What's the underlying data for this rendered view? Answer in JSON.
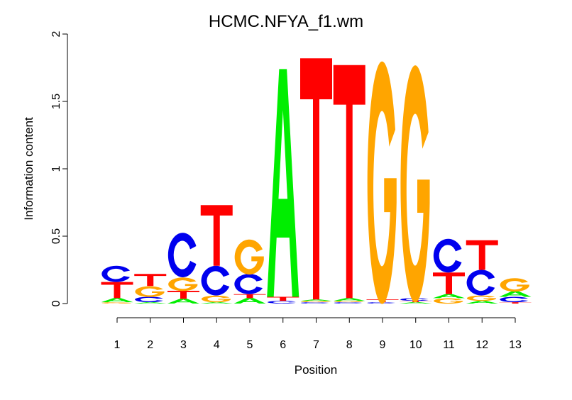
{
  "chart_data": {
    "type": "sequence-logo",
    "title": "HCMC.NFYA_f1.wm",
    "xlabel": "Position",
    "ylabel": "Information content",
    "ylim": [
      0,
      2
    ],
    "yticks": [
      "0",
      "0.5",
      "1",
      "1.5",
      "2"
    ],
    "categories": [
      "1",
      "2",
      "3",
      "4",
      "5",
      "6",
      "7",
      "8",
      "9",
      "10",
      "11",
      "12",
      "13"
    ],
    "colors": {
      "A": "#00ee00",
      "C": "#0000ee",
      "G": "#ffa500",
      "T": "#ff0000"
    },
    "positions": [
      [
        [
          "G",
          0.01
        ],
        [
          "A",
          0.03
        ],
        [
          "T",
          0.12
        ],
        [
          "C",
          0.12
        ]
      ],
      [
        [
          "A",
          0.01
        ],
        [
          "C",
          0.04
        ],
        [
          "G",
          0.08
        ],
        [
          "T",
          0.09
        ]
      ],
      [
        [
          "A",
          0.035
        ],
        [
          "T",
          0.06
        ],
        [
          "G",
          0.1
        ],
        [
          "C",
          0.33
        ]
      ],
      [
        [
          "A",
          0.01
        ],
        [
          "G",
          0.05
        ],
        [
          "C",
          0.22
        ],
        [
          "T",
          0.45
        ]
      ],
      [
        [
          "A",
          0.04
        ],
        [
          "T",
          0.03
        ],
        [
          "C",
          0.15
        ],
        [
          "G",
          0.26
        ]
      ],
      [
        [
          "C",
          0.02
        ],
        [
          "T",
          0.03
        ],
        [
          "A",
          1.69
        ]
      ],
      [
        [
          "C",
          0.01
        ],
        [
          "G",
          0.01
        ],
        [
          "A",
          0.01
        ],
        [
          "T",
          1.79
        ]
      ],
      [
        [
          "C",
          0.01
        ],
        [
          "G",
          0.01
        ],
        [
          "A",
          0.02
        ],
        [
          "T",
          1.73
        ]
      ],
      [
        [
          "C",
          0.01
        ],
        [
          "T",
          0.02
        ],
        [
          "G",
          1.8
        ]
      ],
      [
        [
          "A",
          0.01
        ],
        [
          "T",
          0.01
        ],
        [
          "C",
          0.02
        ],
        [
          "G",
          1.76
        ]
      ],
      [
        [
          "G",
          0.04
        ],
        [
          "A",
          0.03
        ],
        [
          "T",
          0.16
        ],
        [
          "C",
          0.25
        ]
      ],
      [
        [
          "A",
          0.02
        ],
        [
          "G",
          0.04
        ],
        [
          "C",
          0.19
        ],
        [
          "T",
          0.22
        ]
      ],
      [
        [
          "T",
          0.01
        ],
        [
          "C",
          0.04
        ],
        [
          "A",
          0.04
        ],
        [
          "G",
          0.1
        ]
      ]
    ]
  }
}
